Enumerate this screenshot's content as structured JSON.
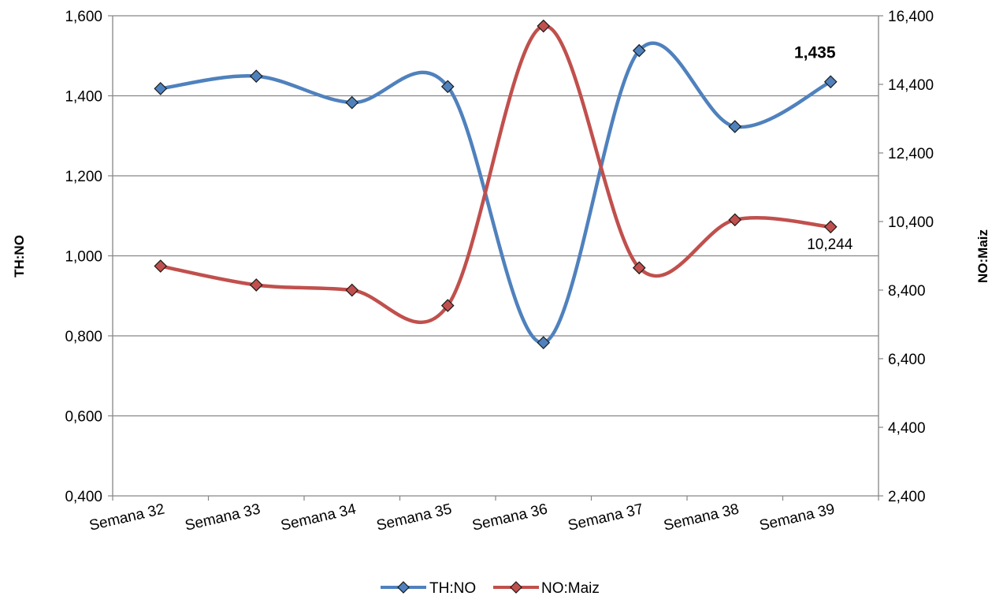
{
  "chart_data": {
    "type": "line",
    "categories": [
      "Semana 32",
      "Semana 33",
      "Semana 34",
      "Semana 35",
      "Semana 36",
      "Semana 37",
      "Semana 38",
      "Semana 39"
    ],
    "series": [
      {
        "name": "TH:NO",
        "axis": "left",
        "color": "#4F81BD",
        "values": [
          1.418,
          1.449,
          1.383,
          1.423,
          0.783,
          1.513,
          1.323,
          1.435
        ]
      },
      {
        "name": "NO:Maiz",
        "axis": "right",
        "color": "#C0504D",
        "values": [
          9100,
          8550,
          8400,
          7950,
          16100,
          9050,
          10450,
          10244
        ]
      }
    ],
    "left_axis": {
      "label": "TH:NO",
      "ylim": [
        0.4,
        1.6
      ],
      "ticks": [
        "0,400",
        "0,600",
        "0,800",
        "1,000",
        "1,200",
        "1,400",
        "1,600"
      ]
    },
    "right_axis": {
      "label": "NO:Maiz",
      "ylim": [
        2400,
        16400
      ],
      "ticks": [
        "2,400",
        "4,400",
        "6,400",
        "8,400",
        "10,400",
        "12,400",
        "14,400",
        "16,400"
      ]
    },
    "data_labels": [
      {
        "series": 0,
        "index": 7,
        "text": "1,435",
        "bold": true
      },
      {
        "series": 1,
        "index": 7,
        "text": "10,244",
        "bold": false
      }
    ],
    "grid": true,
    "legend_position": "bottom",
    "smooth": true
  }
}
